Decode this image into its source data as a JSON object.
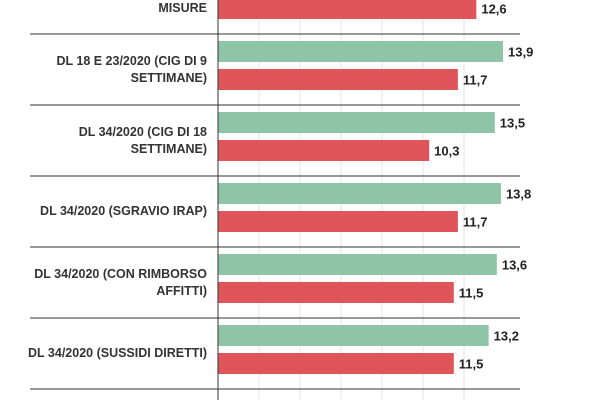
{
  "chart_data": {
    "type": "bar",
    "orientation": "horizontal",
    "categories": [
      "MISURE",
      "DL 18 E 23/2020 (CIG DI 9 SETTIMANE)",
      "DL 34/2020 (CIG DI 18 SETTIMANE)",
      "DL 34/2020 (SGRAVIO IRAP)",
      "DL 34/2020 (CON RIMBORSO AFFITTI)",
      "DL 34/2020 (SUSSIDI DIRETTI)"
    ],
    "series": [
      {
        "color": "#8dc5a6",
        "values": [
          null,
          13.9,
          13.5,
          13.8,
          13.6,
          13.2
        ]
      },
      {
        "color": "#e0555a",
        "values": [
          12.6,
          11.7,
          10.3,
          11.7,
          11.5,
          11.5
        ]
      }
    ],
    "value_labels": [
      [
        null,
        "13,9",
        "13,5",
        "13,8",
        "13,6",
        "13,2"
      ],
      [
        "12,6",
        "11,7",
        "10,3",
        "11,7",
        "11,5",
        "11,5"
      ]
    ],
    "legend": "none",
    "grid": true
  }
}
